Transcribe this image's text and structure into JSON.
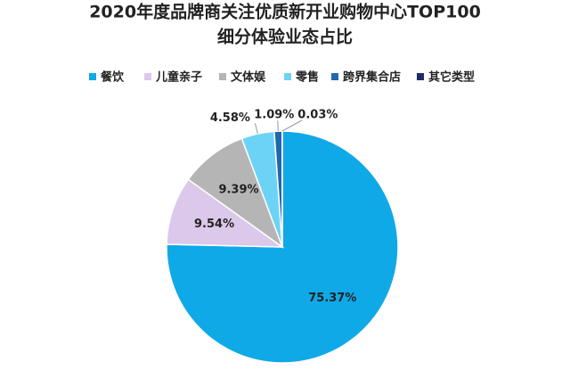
{
  "chart_data": {
    "type": "pie",
    "title": "2020年度品牌商关注优质新开业购物中心TOP100",
    "subtitle": "细分体验业态占比",
    "categories": [
      "餐饮",
      "儿童亲子",
      "文体娱",
      "零售",
      "跨界集合店",
      "其它类型"
    ],
    "values": [
      75.37,
      9.54,
      9.39,
      4.58,
      1.09,
      0.03
    ],
    "value_labels": [
      "75.37%",
      "9.54%",
      "9.39%",
      "4.58%",
      "1.09%",
      "0.03%"
    ],
    "colors": [
      "#0fa9e8",
      "#dcc8ea",
      "#b5b5b5",
      "#6dd3f6",
      "#2067b0",
      "#1f2d66"
    ]
  }
}
